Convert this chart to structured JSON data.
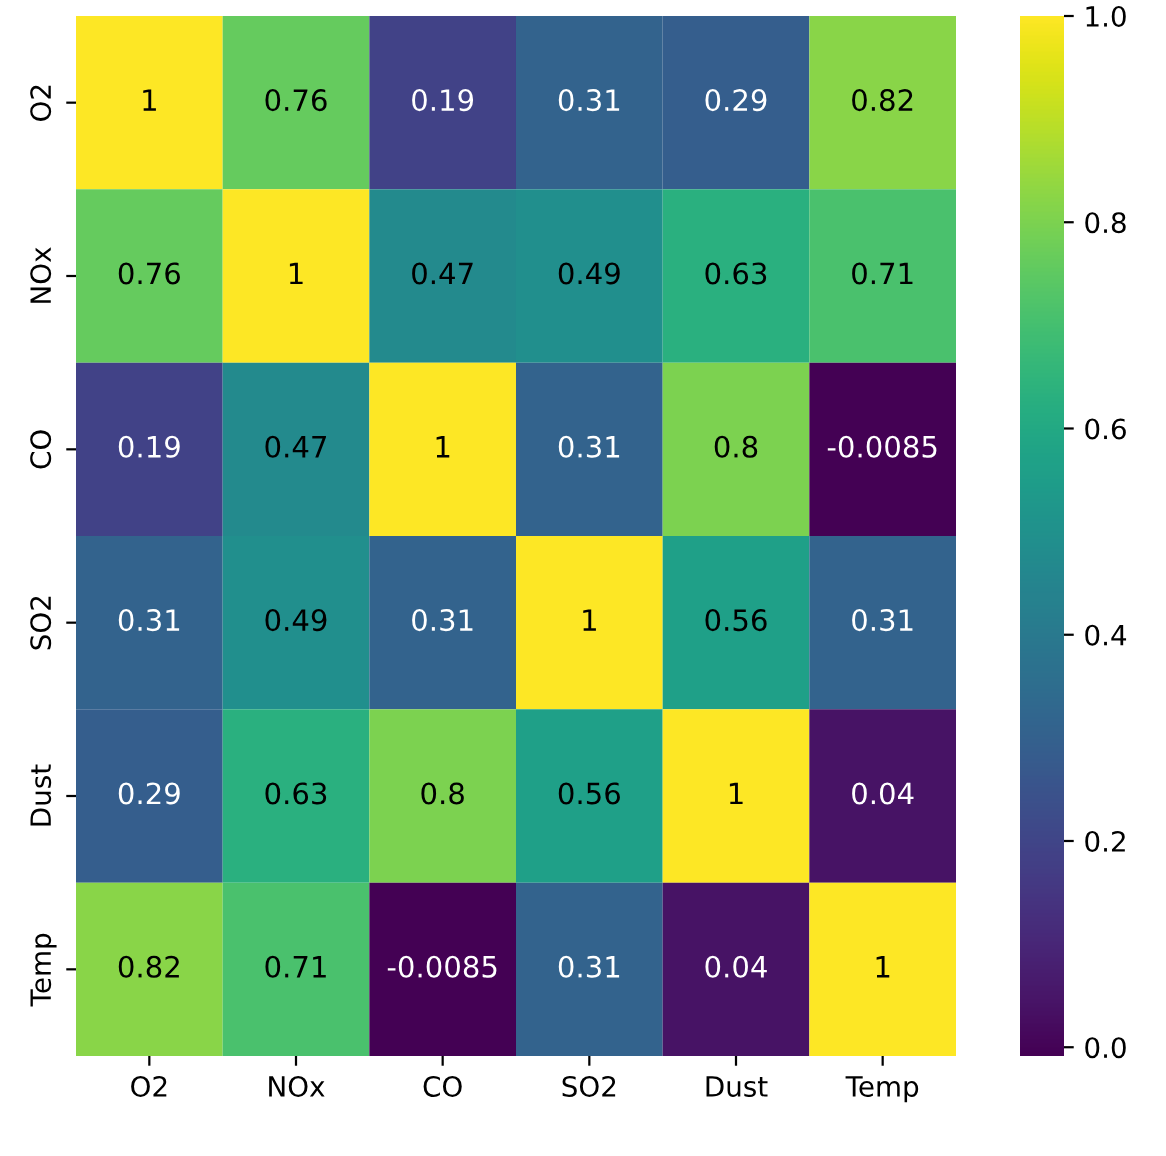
{
  "chart_data": {
    "type": "heatmap",
    "categories": [
      "O2",
      "NOx",
      "CO",
      "SO2",
      "Dust",
      "Temp"
    ],
    "y_categories": [
      "O2",
      "NOx",
      "CO",
      "SO2",
      "Dust",
      "Temp"
    ],
    "cells": [
      [
        1,
        0.76,
        0.19,
        0.31,
        0.29,
        0.82
      ],
      [
        0.76,
        1,
        0.47,
        0.49,
        0.63,
        0.71
      ],
      [
        0.19,
        0.47,
        1,
        0.31,
        0.8,
        -0.0085
      ],
      [
        0.31,
        0.49,
        0.31,
        1,
        0.56,
        0.31
      ],
      [
        0.29,
        0.63,
        0.8,
        0.56,
        1,
        0.04
      ],
      [
        0.82,
        0.71,
        -0.0085,
        0.31,
        0.04,
        1
      ]
    ],
    "clim": [
      -0.0085,
      1
    ],
    "cticks": [
      {
        "value": 0,
        "label": "0.0"
      },
      {
        "value": 0.2,
        "label": "0.2"
      },
      {
        "value": 0.4,
        "label": "0.4"
      },
      {
        "value": 0.6,
        "label": "0.6"
      },
      {
        "value": 0.8,
        "label": "0.8"
      },
      {
        "value": 1,
        "label": "1.0"
      }
    ],
    "data_labels": true
  }
}
